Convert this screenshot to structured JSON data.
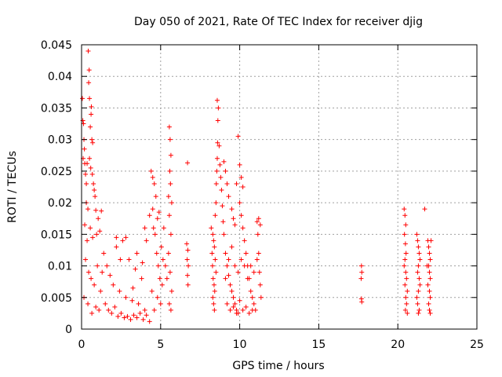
{
  "chart_data": {
    "type": "scatter",
    "title": "Day 050 of 2021, Rate Of TEC Index for receiver djig",
    "xlabel": "GPS time / hours",
    "ylabel": "ROTI / TECUs",
    "xlim": [
      0,
      25
    ],
    "ylim": [
      0,
      0.045
    ],
    "x_ticks": [
      0,
      5,
      10,
      15,
      20,
      25
    ],
    "y_ticks": [
      0,
      0.005,
      0.01,
      0.015,
      0.02,
      0.025,
      0.03,
      0.035,
      0.04,
      0.045
    ],
    "x_tick_labels": [
      "0",
      "5",
      "10",
      "15",
      "20",
      "25"
    ],
    "y_tick_labels": [
      "0",
      "0.005",
      "0.01",
      "0.015",
      "0.02",
      "0.025",
      "0.03",
      "0.035",
      "0.04",
      "0.045"
    ],
    "grid": true,
    "marker": "+",
    "color": "#ff0000",
    "series": [
      {
        "name": "ROTI",
        "points": [
          [
            0.05,
            0.0365
          ],
          [
            0.08,
            0.033
          ],
          [
            0.12,
            0.0325
          ],
          [
            0.15,
            0.03
          ],
          [
            0.18,
            0.0285
          ],
          [
            0.1,
            0.027
          ],
          [
            0.2,
            0.0262
          ],
          [
            0.25,
            0.0245
          ],
          [
            0.3,
            0.023
          ],
          [
            0.35,
            0.0262
          ],
          [
            0.42,
            0.044
          ],
          [
            0.48,
            0.041
          ],
          [
            0.45,
            0.039
          ],
          [
            0.5,
            0.0365
          ],
          [
            0.62,
            0.0352
          ],
          [
            0.6,
            0.034
          ],
          [
            0.55,
            0.032
          ],
          [
            0.65,
            0.03
          ],
          [
            0.7,
            0.0295
          ],
          [
            0.5,
            0.027
          ],
          [
            0.58,
            0.0255
          ],
          [
            0.68,
            0.0245
          ],
          [
            0.75,
            0.023
          ],
          [
            0.8,
            0.022
          ],
          [
            0.85,
            0.021
          ],
          [
            0.3,
            0.02
          ],
          [
            0.4,
            0.019
          ],
          [
            0.9,
            0.0188
          ],
          [
            1.05,
            0.0175
          ],
          [
            1.25,
            0.0187
          ],
          [
            0.2,
            0.0165
          ],
          [
            0.55,
            0.016
          ],
          [
            0.95,
            0.015
          ],
          [
            1.15,
            0.0155
          ],
          [
            0.7,
            0.0145
          ],
          [
            0.35,
            0.014
          ],
          [
            0.25,
            0.011
          ],
          [
            0.45,
            0.009
          ],
          [
            0.6,
            0.008
          ],
          [
            0.8,
            0.007
          ],
          [
            1.0,
            0.01
          ],
          [
            1.2,
            0.006
          ],
          [
            0.15,
            0.005
          ],
          [
            0.4,
            0.004
          ],
          [
            0.9,
            0.0035
          ],
          [
            1.1,
            0.003
          ],
          [
            0.65,
            0.0025
          ],
          [
            1.4,
            0.012
          ],
          [
            1.6,
            0.01
          ],
          [
            1.8,
            0.0085
          ],
          [
            2.0,
            0.007
          ],
          [
            2.2,
            0.013
          ],
          [
            2.4,
            0.006
          ],
          [
            2.6,
            0.014
          ],
          [
            2.8,
            0.005
          ],
          [
            3.0,
            0.011
          ],
          [
            3.2,
            0.0045
          ],
          [
            3.4,
            0.0095
          ],
          [
            3.6,
            0.004
          ],
          [
            3.8,
            0.008
          ],
          [
            4.0,
            0.003
          ],
          [
            1.5,
            0.004
          ],
          [
            1.7,
            0.003
          ],
          [
            1.9,
            0.0025
          ],
          [
            2.1,
            0.0035
          ],
          [
            2.3,
            0.002
          ],
          [
            2.5,
            0.0025
          ],
          [
            2.7,
            0.0018
          ],
          [
            2.9,
            0.002
          ],
          [
            3.1,
            0.0015
          ],
          [
            3.3,
            0.0022
          ],
          [
            3.5,
            0.0018
          ],
          [
            3.7,
            0.0025
          ],
          [
            3.9,
            0.0015
          ],
          [
            4.1,
            0.0022
          ],
          [
            4.3,
            0.0012
          ],
          [
            2.2,
            0.0145
          ],
          [
            2.8,
            0.0145
          ],
          [
            3.5,
            0.012
          ],
          [
            4.0,
            0.016
          ],
          [
            4.1,
            0.014
          ],
          [
            1.3,
            0.009
          ],
          [
            2.45,
            0.011
          ],
          [
            3.25,
            0.0065
          ],
          [
            3.85,
            0.0105
          ],
          [
            4.3,
            0.018
          ],
          [
            4.4,
            0.025
          ],
          [
            4.5,
            0.024
          ],
          [
            4.6,
            0.023
          ],
          [
            4.7,
            0.021
          ],
          [
            4.5,
            0.019
          ],
          [
            4.8,
            0.0175
          ],
          [
            4.9,
            0.0185
          ],
          [
            4.55,
            0.016
          ],
          [
            4.65,
            0.015
          ],
          [
            4.75,
            0.012
          ],
          [
            4.85,
            0.01
          ],
          [
            4.95,
            0.008
          ],
          [
            5.05,
            0.013
          ],
          [
            5.15,
            0.011
          ],
          [
            4.45,
            0.006
          ],
          [
            4.6,
            0.003
          ],
          [
            4.8,
            0.005
          ],
          [
            5.0,
            0.004
          ],
          [
            5.1,
            0.007
          ],
          [
            5.2,
            0.016
          ],
          [
            5.3,
            0.01
          ],
          [
            5.4,
            0.008
          ],
          [
            5.55,
            0.032
          ],
          [
            5.6,
            0.03
          ],
          [
            5.65,
            0.0275
          ],
          [
            5.58,
            0.025
          ],
          [
            5.62,
            0.023
          ],
          [
            5.5,
            0.021
          ],
          [
            5.7,
            0.02
          ],
          [
            5.55,
            0.018
          ],
          [
            5.65,
            0.015
          ],
          [
            5.5,
            0.012
          ],
          [
            5.6,
            0.009
          ],
          [
            5.7,
            0.006
          ],
          [
            5.55,
            0.004
          ],
          [
            5.65,
            0.003
          ],
          [
            6.7,
            0.0263
          ],
          [
            6.65,
            0.0135
          ],
          [
            6.72,
            0.0125
          ],
          [
            6.68,
            0.011
          ],
          [
            6.75,
            0.01
          ],
          [
            6.7,
            0.0085
          ],
          [
            6.73,
            0.007
          ],
          [
            8.2,
            0.016
          ],
          [
            8.3,
            0.015
          ],
          [
            8.35,
            0.014
          ],
          [
            8.4,
            0.013
          ],
          [
            8.25,
            0.012
          ],
          [
            8.45,
            0.011
          ],
          [
            8.28,
            0.01
          ],
          [
            8.5,
            0.009
          ],
          [
            8.32,
            0.008
          ],
          [
            8.38,
            0.007
          ],
          [
            8.42,
            0.006
          ],
          [
            8.3,
            0.005
          ],
          [
            8.35,
            0.004
          ],
          [
            8.4,
            0.003
          ],
          [
            8.45,
            0.018
          ],
          [
            8.5,
            0.02
          ],
          [
            8.52,
            0.023
          ],
          [
            8.55,
            0.025
          ],
          [
            8.58,
            0.027
          ],
          [
            8.6,
            0.0295
          ],
          [
            8.62,
            0.033
          ],
          [
            8.65,
            0.035
          ],
          [
            8.58,
            0.0362
          ],
          [
            8.7,
            0.029
          ],
          [
            8.75,
            0.026
          ],
          [
            8.8,
            0.024
          ],
          [
            8.85,
            0.022
          ],
          [
            8.9,
            0.0195
          ],
          [
            8.95,
            0.017
          ],
          [
            9.0,
            0.015
          ],
          [
            9.1,
            0.012
          ],
          [
            9.2,
            0.01
          ],
          [
            9.3,
            0.0085
          ],
          [
            9.4,
            0.007
          ],
          [
            9.5,
            0.006
          ],
          [
            9.6,
            0.005
          ],
          [
            9.7,
            0.004
          ],
          [
            9.8,
            0.003
          ],
          [
            9.9,
            0.0025
          ],
          [
            9.0,
            0.0265
          ],
          [
            9.1,
            0.025
          ],
          [
            9.2,
            0.023
          ],
          [
            9.3,
            0.021
          ],
          [
            9.5,
            0.019
          ],
          [
            9.6,
            0.0175
          ],
          [
            9.7,
            0.0165
          ],
          [
            9.8,
            0.023
          ],
          [
            9.9,
            0.0305
          ],
          [
            10.0,
            0.026
          ],
          [
            10.1,
            0.024
          ],
          [
            10.2,
            0.0225
          ],
          [
            10.0,
            0.02
          ],
          [
            10.1,
            0.018
          ],
          [
            10.2,
            0.016
          ],
          [
            10.3,
            0.014
          ],
          [
            10.4,
            0.012
          ],
          [
            10.5,
            0.01
          ],
          [
            10.6,
            0.008
          ],
          [
            10.7,
            0.006
          ],
          [
            10.8,
            0.005
          ],
          [
            10.9,
            0.004
          ],
          [
            11.0,
            0.003
          ],
          [
            11.1,
            0.017
          ],
          [
            11.15,
            0.015
          ],
          [
            11.2,
            0.012
          ],
          [
            11.25,
            0.009
          ],
          [
            11.3,
            0.007
          ],
          [
            11.35,
            0.005
          ],
          [
            11.3,
            0.0165
          ],
          [
            11.2,
            0.0175
          ],
          [
            9.2,
            0.004
          ],
          [
            9.4,
            0.003
          ],
          [
            9.6,
            0.0035
          ],
          [
            9.8,
            0.0025
          ],
          [
            10.0,
            0.0045
          ],
          [
            10.2,
            0.003
          ],
          [
            10.4,
            0.0035
          ],
          [
            10.6,
            0.0025
          ],
          [
            10.8,
            0.003
          ],
          [
            9.1,
            0.008
          ],
          [
            9.3,
            0.011
          ],
          [
            9.5,
            0.013
          ],
          [
            9.7,
            0.01
          ],
          [
            9.9,
            0.009
          ],
          [
            10.1,
            0.011
          ],
          [
            10.3,
            0.01
          ],
          [
            10.5,
            0.008
          ],
          [
            10.7,
            0.01
          ],
          [
            10.9,
            0.009
          ],
          [
            11.1,
            0.011
          ],
          [
            17.7,
            0.01
          ],
          [
            17.72,
            0.009
          ],
          [
            17.68,
            0.008
          ],
          [
            17.7,
            0.0048
          ],
          [
            17.72,
            0.0043
          ],
          [
            20.4,
            0.019
          ],
          [
            20.45,
            0.018
          ],
          [
            20.5,
            0.0165
          ],
          [
            20.42,
            0.015
          ],
          [
            20.48,
            0.0135
          ],
          [
            20.52,
            0.012
          ],
          [
            20.45,
            0.011
          ],
          [
            20.4,
            0.01
          ],
          [
            20.5,
            0.009
          ],
          [
            20.55,
            0.008
          ],
          [
            20.45,
            0.007
          ],
          [
            20.6,
            0.006
          ],
          [
            20.5,
            0.005
          ],
          [
            20.55,
            0.004
          ],
          [
            20.48,
            0.003
          ],
          [
            20.6,
            0.0025
          ],
          [
            21.2,
            0.015
          ],
          [
            21.25,
            0.014
          ],
          [
            21.3,
            0.013
          ],
          [
            21.35,
            0.012
          ],
          [
            21.4,
            0.011
          ],
          [
            21.3,
            0.01
          ],
          [
            21.25,
            0.009
          ],
          [
            21.35,
            0.008
          ],
          [
            21.4,
            0.007
          ],
          [
            21.3,
            0.006
          ],
          [
            21.2,
            0.005
          ],
          [
            21.25,
            0.004
          ],
          [
            21.35,
            0.003
          ],
          [
            21.3,
            0.0025
          ],
          [
            21.7,
            0.019
          ],
          [
            21.9,
            0.014
          ],
          [
            21.95,
            0.013
          ],
          [
            22.0,
            0.012
          ],
          [
            22.05,
            0.011
          ],
          [
            21.95,
            0.01
          ],
          [
            22.0,
            0.009
          ],
          [
            22.05,
            0.008
          ],
          [
            21.9,
            0.007
          ],
          [
            22.0,
            0.006
          ],
          [
            22.05,
            0.005
          ],
          [
            21.95,
            0.004
          ],
          [
            22.0,
            0.003
          ],
          [
            22.05,
            0.0025
          ],
          [
            21.85,
            0.01
          ],
          [
            22.1,
            0.014
          ]
        ]
      }
    ]
  }
}
